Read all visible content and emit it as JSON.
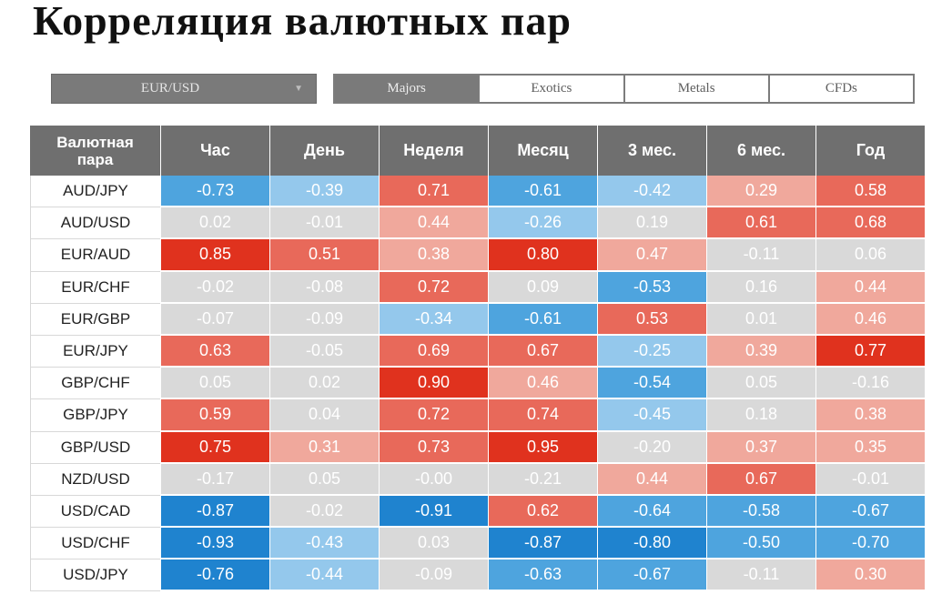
{
  "title": "Корреляция валютных пар",
  "pair_selector": {
    "value": "EUR/USD"
  },
  "tabs": [
    "Majors",
    "Exotics",
    "Metals",
    "CFDs"
  ],
  "active_tab": 0,
  "table": {
    "header_first": "Валютная\nпара",
    "periods": [
      "Час",
      "День",
      "Неделя",
      "Месяц",
      "3 мес.",
      "6 мес.",
      "Год"
    ],
    "rows": [
      {
        "pair": "AUD/JPY",
        "values": [
          "-0.73",
          "-0.39",
          "0.71",
          "-0.61",
          "-0.42",
          "0.29",
          "0.58"
        ]
      },
      {
        "pair": "AUD/USD",
        "values": [
          "0.02",
          "-0.01",
          "0.44",
          "-0.26",
          "0.19",
          "0.61",
          "0.68"
        ]
      },
      {
        "pair": "EUR/AUD",
        "values": [
          "0.85",
          "0.51",
          "0.38",
          "0.80",
          "0.47",
          "-0.11",
          "0.06"
        ]
      },
      {
        "pair": "EUR/CHF",
        "values": [
          "-0.02",
          "-0.08",
          "0.72",
          "0.09",
          "-0.53",
          "0.16",
          "0.44"
        ]
      },
      {
        "pair": "EUR/GBP",
        "values": [
          "-0.07",
          "-0.09",
          "-0.34",
          "-0.61",
          "0.53",
          "0.01",
          "0.46"
        ]
      },
      {
        "pair": "EUR/JPY",
        "values": [
          "0.63",
          "-0.05",
          "0.69",
          "0.67",
          "-0.25",
          "0.39",
          "0.77"
        ]
      },
      {
        "pair": "GBP/CHF",
        "values": [
          "0.05",
          "0.02",
          "0.90",
          "0.46",
          "-0.54",
          "0.05",
          "-0.16"
        ]
      },
      {
        "pair": "GBP/JPY",
        "values": [
          "0.59",
          "0.04",
          "0.72",
          "0.74",
          "-0.45",
          "0.18",
          "0.38"
        ]
      },
      {
        "pair": "GBP/USD",
        "values": [
          "0.75",
          "0.31",
          "0.73",
          "0.95",
          "-0.20",
          "0.37",
          "0.35"
        ]
      },
      {
        "pair": "NZD/USD",
        "values": [
          "-0.17",
          "0.05",
          "-0.00",
          "-0.21",
          "0.44",
          "0.67",
          "-0.01"
        ]
      },
      {
        "pair": "USD/CAD",
        "values": [
          "-0.87",
          "-0.02",
          "-0.91",
          "0.62",
          "-0.64",
          "-0.58",
          "-0.67"
        ]
      },
      {
        "pair": "USD/CHF",
        "values": [
          "-0.93",
          "-0.43",
          "0.03",
          "-0.87",
          "-0.80",
          "-0.50",
          "-0.70"
        ]
      },
      {
        "pair": "USD/JPY",
        "values": [
          "-0.76",
          "-0.44",
          "-0.09",
          "-0.63",
          "-0.67",
          "-0.11",
          "0.30"
        ]
      }
    ]
  },
  "colors": {
    "header_bg": "#6f6f6f",
    "neutral": "#d9d9d9",
    "pos_light": "#f0a89c",
    "pos_mid": "#e8695a",
    "pos_strong": "#e0321e",
    "neg_light": "#94c8ec",
    "neg_mid": "#4ea4de",
    "neg_strong": "#1f83cf"
  }
}
